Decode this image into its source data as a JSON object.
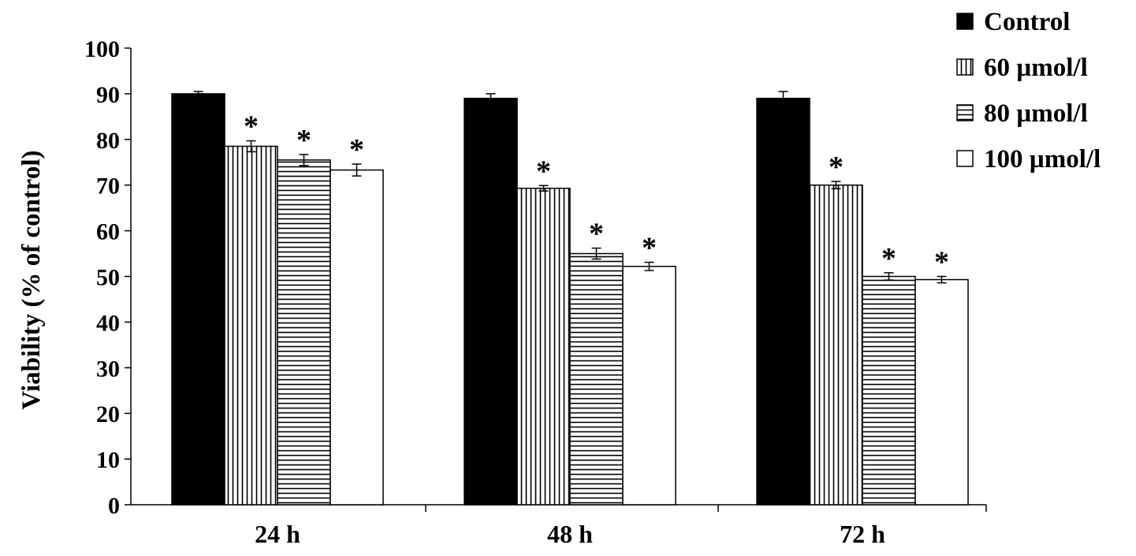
{
  "chart_data": {
    "type": "bar",
    "title": "",
    "xlabel": "",
    "ylabel": "Viability (% of control)",
    "ylim": [
      0,
      100
    ],
    "yticks": [
      0,
      10,
      20,
      30,
      40,
      50,
      60,
      70,
      80,
      90,
      100
    ],
    "grid": false,
    "legend_position": "top-right",
    "categories": [
      "24 h",
      "48 h",
      "72 h"
    ],
    "significance_marker": "*",
    "series": [
      {
        "name": "Control",
        "fill": "solid",
        "color": "#000000",
        "values": [
          90,
          89,
          89
        ],
        "errors": [
          0.5,
          1.0,
          1.5
        ],
        "significant": [
          false,
          false,
          false
        ]
      },
      {
        "name": "60 µmol/l",
        "fill": "vertical-stripes",
        "color": "#000000",
        "values": [
          78.5,
          69.3,
          70
        ],
        "errors": [
          1.2,
          0.6,
          0.8
        ],
        "significant": [
          true,
          true,
          true
        ]
      },
      {
        "name": "80 µmol/l",
        "fill": "horizontal-stripes",
        "color": "#000000",
        "values": [
          75.5,
          55,
          50
        ],
        "errors": [
          1.2,
          1.2,
          0.8
        ],
        "significant": [
          true,
          true,
          true
        ]
      },
      {
        "name": "100 µmol/l",
        "fill": "white",
        "color": "#000000",
        "values": [
          73.3,
          52.2,
          49.3
        ],
        "errors": [
          1.3,
          0.9,
          0.7
        ],
        "significant": [
          true,
          true,
          true
        ]
      }
    ]
  }
}
